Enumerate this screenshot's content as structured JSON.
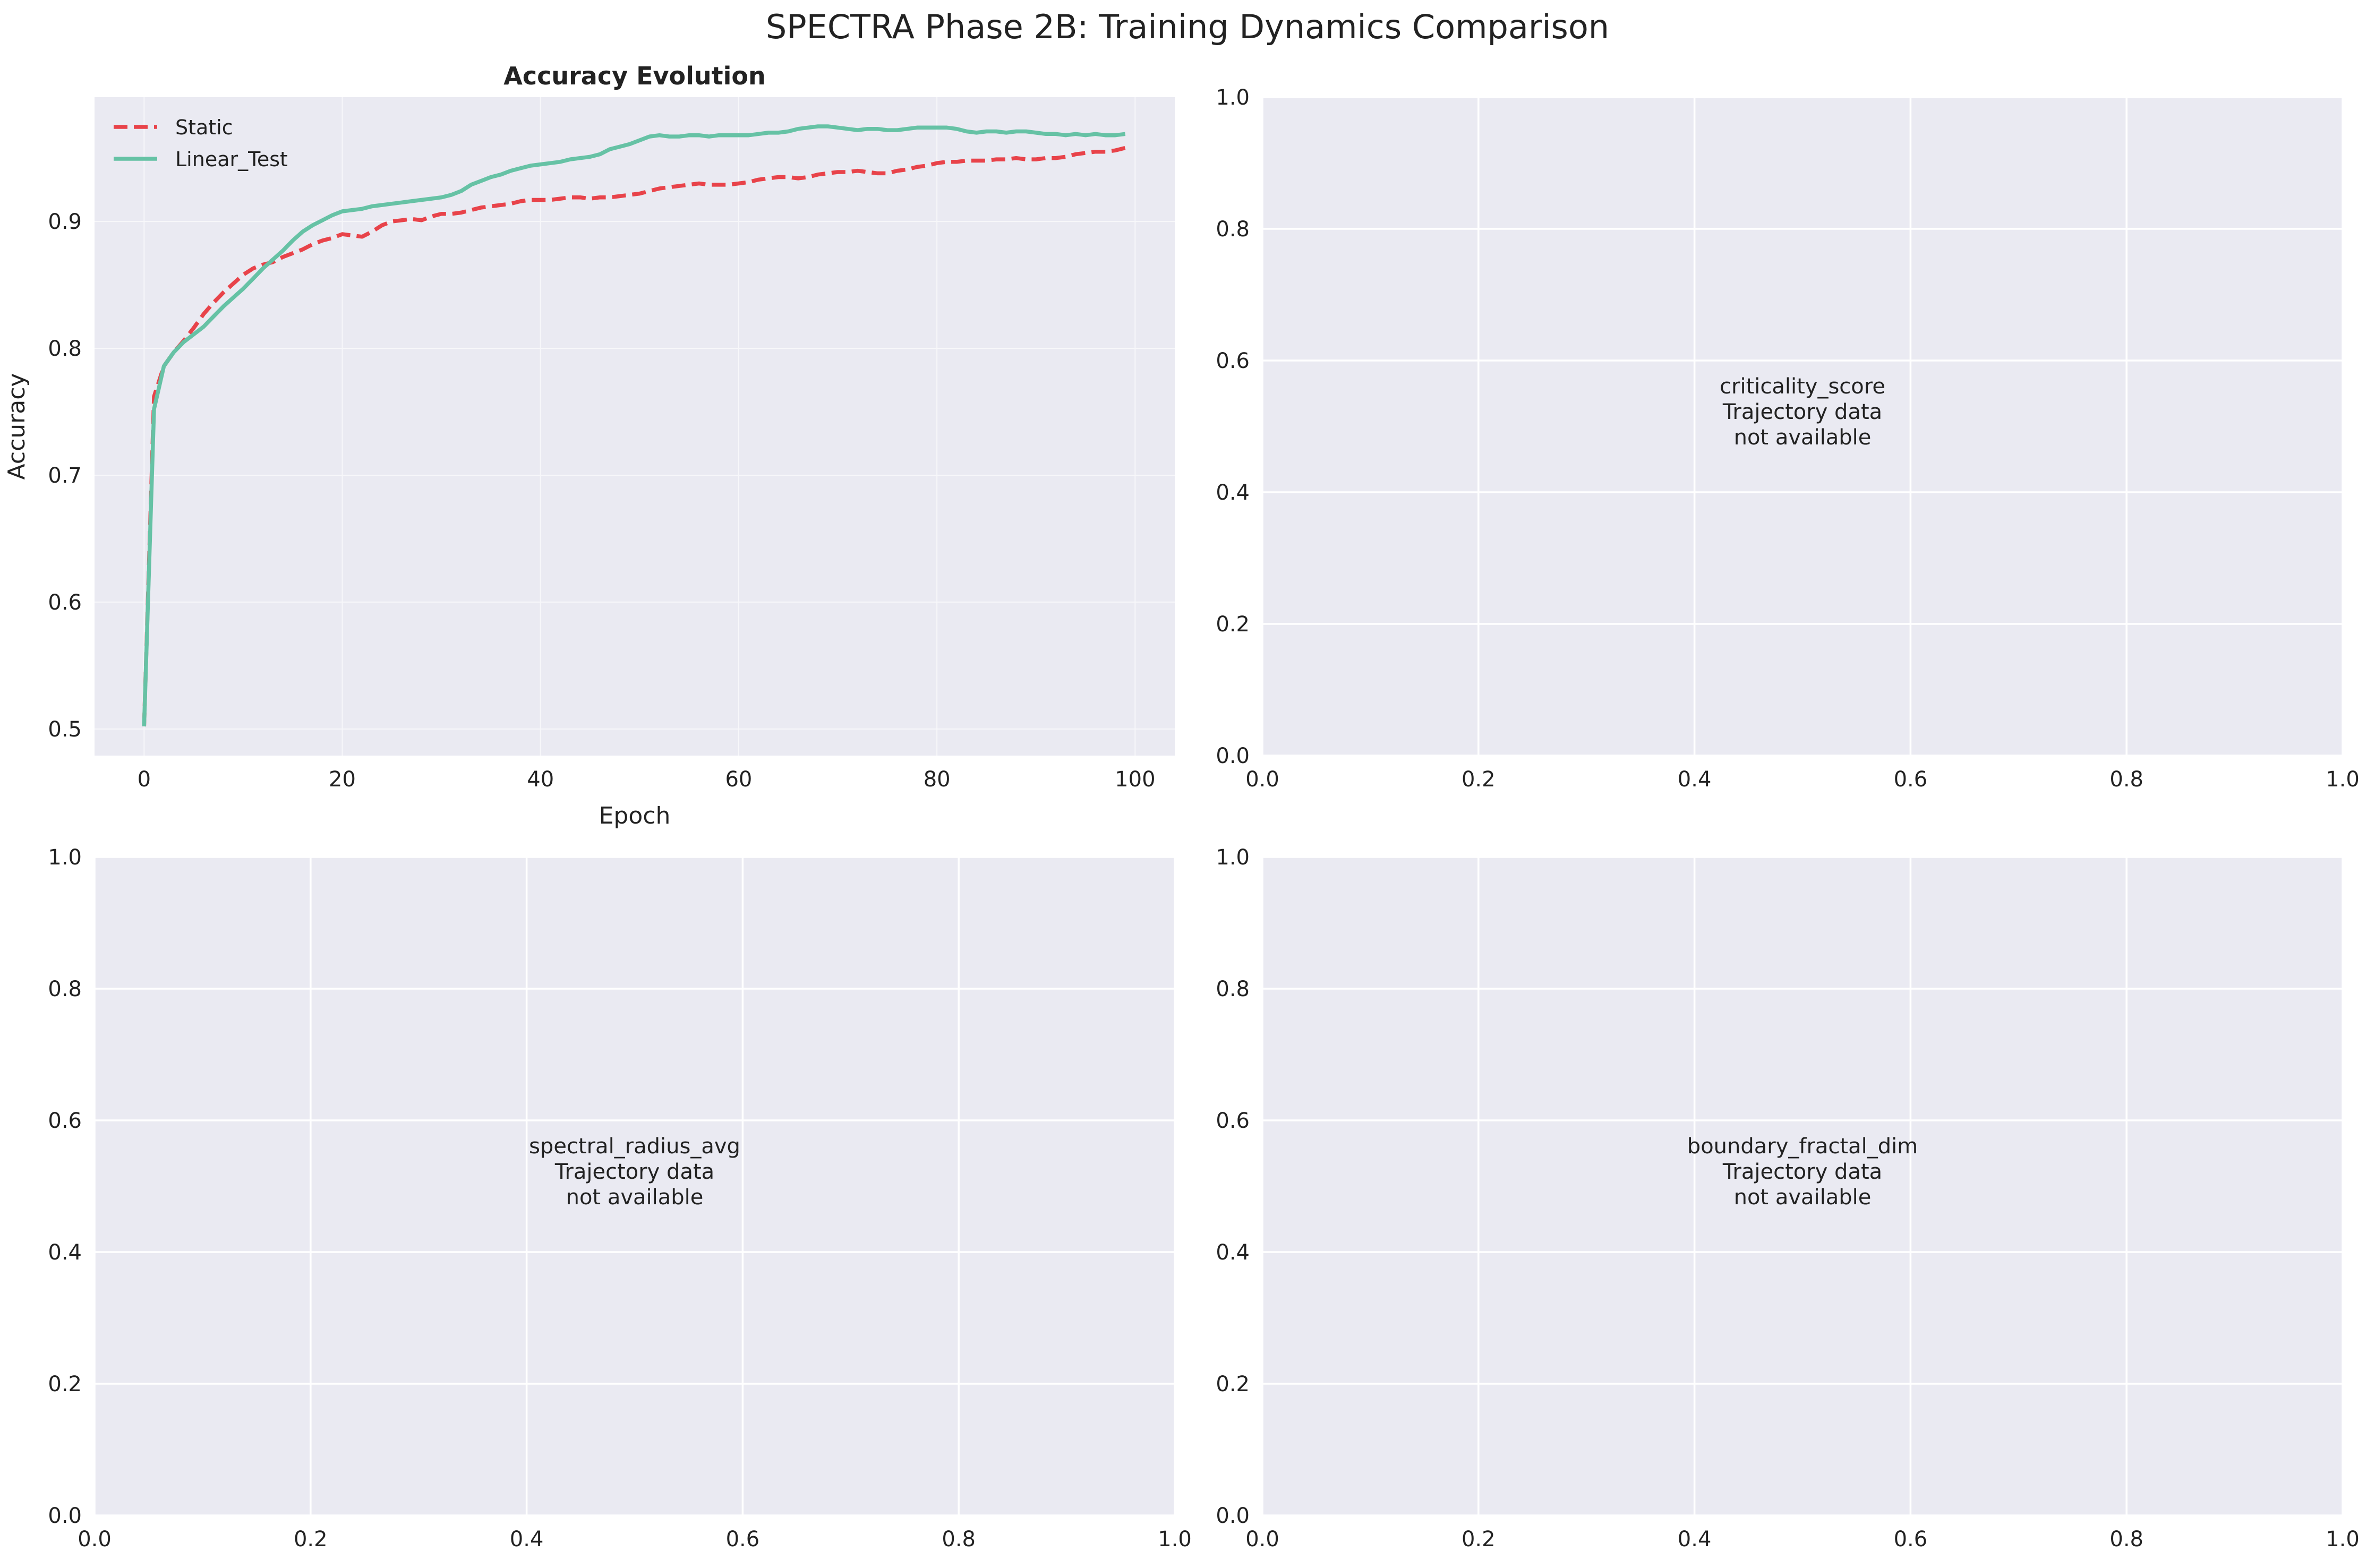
{
  "figure": {
    "suptitle": "SPECTRA Phase 2B: Training Dynamics Comparison"
  },
  "colors": {
    "plot_background": "#EAEAF2",
    "grid": "#FFFFFF",
    "static": "#E8434A",
    "linear_test": "#66C2A5",
    "text": "#222222"
  },
  "chart_data": [
    {
      "type": "line",
      "title": "Accuracy Evolution",
      "xlabel": "Epoch",
      "ylabel": "Accuracy",
      "xlim": [
        -5,
        104
      ],
      "ylim": [
        0.479,
        0.998
      ],
      "xticks": [
        0,
        20,
        40,
        60,
        80,
        100
      ],
      "yticks": [
        0.5,
        0.6,
        0.7,
        0.8,
        0.9
      ],
      "grid": true,
      "legend": "top-left",
      "series": [
        {
          "name": "Static",
          "line_style": "dashed",
          "x": [
            0,
            1,
            2,
            3,
            4,
            5,
            6,
            7,
            8,
            9,
            10,
            11,
            12,
            13,
            14,
            15,
            16,
            17,
            18,
            19,
            20,
            21,
            22,
            23,
            24,
            25,
            26,
            27,
            28,
            29,
            30,
            31,
            32,
            33,
            34,
            35,
            36,
            37,
            38,
            39,
            40,
            41,
            42,
            43,
            44,
            45,
            46,
            47,
            48,
            49,
            50,
            51,
            52,
            53,
            54,
            55,
            56,
            57,
            58,
            59,
            60,
            61,
            62,
            63,
            64,
            65,
            66,
            67,
            68,
            69,
            70,
            71,
            72,
            73,
            74,
            75,
            76,
            77,
            78,
            79,
            80,
            81,
            82,
            83,
            84,
            85,
            86,
            87,
            88,
            89,
            90,
            91,
            92,
            93,
            94,
            95,
            96,
            97,
            98,
            99
          ],
          "values": [
            0.502,
            0.762,
            0.786,
            0.797,
            0.806,
            0.816,
            0.827,
            0.836,
            0.844,
            0.851,
            0.858,
            0.863,
            0.866,
            0.868,
            0.872,
            0.875,
            0.878,
            0.882,
            0.885,
            0.887,
            0.89,
            0.889,
            0.888,
            0.892,
            0.897,
            0.9,
            0.901,
            0.902,
            0.901,
            0.904,
            0.906,
            0.906,
            0.907,
            0.909,
            0.911,
            0.912,
            0.913,
            0.914,
            0.916,
            0.917,
            0.917,
            0.917,
            0.918,
            0.919,
            0.919,
            0.918,
            0.919,
            0.919,
            0.92,
            0.921,
            0.922,
            0.924,
            0.926,
            0.927,
            0.928,
            0.929,
            0.93,
            0.929,
            0.929,
            0.929,
            0.93,
            0.931,
            0.933,
            0.934,
            0.935,
            0.935,
            0.934,
            0.935,
            0.937,
            0.938,
            0.939,
            0.939,
            0.94,
            0.939,
            0.938,
            0.938,
            0.94,
            0.941,
            0.943,
            0.944,
            0.946,
            0.947,
            0.947,
            0.948,
            0.948,
            0.948,
            0.949,
            0.949,
            0.95,
            0.949,
            0.949,
            0.95,
            0.95,
            0.951,
            0.953,
            0.954,
            0.955,
            0.955,
            0.956,
            0.958
          ]
        },
        {
          "name": "Linear_Test",
          "line_style": "solid",
          "x": [
            0,
            1,
            2,
            3,
            4,
            5,
            6,
            7,
            8,
            9,
            10,
            11,
            12,
            13,
            14,
            15,
            16,
            17,
            18,
            19,
            20,
            21,
            22,
            23,
            24,
            25,
            26,
            27,
            28,
            29,
            30,
            31,
            32,
            33,
            34,
            35,
            36,
            37,
            38,
            39,
            40,
            41,
            42,
            43,
            44,
            45,
            46,
            47,
            48,
            49,
            50,
            51,
            52,
            53,
            54,
            55,
            56,
            57,
            58,
            59,
            60,
            61,
            62,
            63,
            64,
            65,
            66,
            67,
            68,
            69,
            70,
            71,
            72,
            73,
            74,
            75,
            76,
            77,
            78,
            79,
            80,
            81,
            82,
            83,
            84,
            85,
            86,
            87,
            88,
            89,
            90,
            91,
            92,
            93,
            94,
            95,
            96,
            97,
            98,
            99
          ],
          "values": [
            0.502,
            0.752,
            0.786,
            0.797,
            0.805,
            0.811,
            0.817,
            0.825,
            0.833,
            0.84,
            0.847,
            0.855,
            0.863,
            0.87,
            0.877,
            0.885,
            0.892,
            0.897,
            0.901,
            0.905,
            0.908,
            0.909,
            0.91,
            0.912,
            0.913,
            0.914,
            0.915,
            0.916,
            0.917,
            0.918,
            0.919,
            0.921,
            0.924,
            0.929,
            0.932,
            0.935,
            0.937,
            0.94,
            0.942,
            0.944,
            0.945,
            0.946,
            0.947,
            0.949,
            0.95,
            0.951,
            0.953,
            0.957,
            0.959,
            0.961,
            0.964,
            0.967,
            0.968,
            0.967,
            0.967,
            0.968,
            0.968,
            0.967,
            0.968,
            0.968,
            0.968,
            0.968,
            0.969,
            0.97,
            0.97,
            0.971,
            0.973,
            0.974,
            0.975,
            0.975,
            0.974,
            0.973,
            0.972,
            0.973,
            0.973,
            0.972,
            0.972,
            0.973,
            0.974,
            0.974,
            0.974,
            0.974,
            0.973,
            0.971,
            0.97,
            0.971,
            0.971,
            0.97,
            0.971,
            0.971,
            0.97,
            0.969,
            0.969,
            0.968,
            0.969,
            0.968,
            0.969,
            0.968,
            0.968,
            0.969
          ]
        }
      ]
    },
    {
      "type": "line",
      "title": "",
      "xlim": [
        0,
        1
      ],
      "ylim": [
        0,
        1
      ],
      "xticks": [
        0.0,
        0.2,
        0.4,
        0.6,
        0.8,
        1.0
      ],
      "yticks": [
        0.0,
        0.2,
        0.4,
        0.6,
        0.8,
        1.0
      ],
      "grid": true,
      "annotation": [
        "criticality_score",
        "Trajectory data",
        "not available"
      ],
      "series": []
    },
    {
      "type": "line",
      "title": "",
      "xlim": [
        0,
        1
      ],
      "ylim": [
        0,
        1
      ],
      "xticks": [
        0.0,
        0.2,
        0.4,
        0.6,
        0.8,
        1.0
      ],
      "yticks": [
        0.0,
        0.2,
        0.4,
        0.6,
        0.8,
        1.0
      ],
      "grid": true,
      "annotation": [
        "spectral_radius_avg",
        "Trajectory data",
        "not available"
      ],
      "series": []
    },
    {
      "type": "line",
      "title": "",
      "xlim": [
        0,
        1
      ],
      "ylim": [
        0,
        1
      ],
      "xticks": [
        0.0,
        0.2,
        0.4,
        0.6,
        0.8,
        1.0
      ],
      "yticks": [
        0.0,
        0.2,
        0.4,
        0.6,
        0.8,
        1.0
      ],
      "grid": true,
      "annotation": [
        "boundary_fractal_dim",
        "Trajectory data",
        "not available"
      ],
      "series": []
    }
  ]
}
